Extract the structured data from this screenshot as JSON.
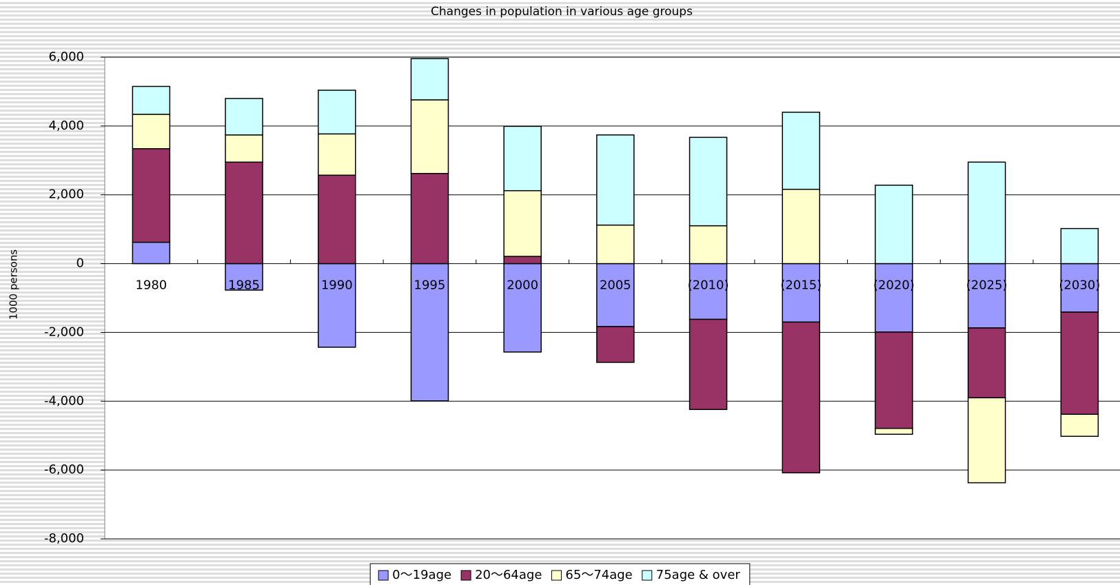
{
  "chart_data": {
    "type": "stacked_bar",
    "title": "Changes in population in various age groups",
    "y_label": "1000 persons",
    "categories": [
      "1980",
      "1985",
      "1990",
      "1995",
      "2000",
      "2005",
      "(2010)",
      "(2015)",
      "(2020)",
      "(2025)",
      "(2030)"
    ],
    "series": [
      {
        "name": "0〜19age",
        "color": "#9999ff",
        "values": [
          620,
          -770,
          -2430,
          -3990,
          -2570,
          -1830,
          -1620,
          -1700,
          -1990,
          -1870,
          -1410
        ]
      },
      {
        "name": "20〜64age",
        "color": "#993366",
        "values": [
          2720,
          2950,
          2570,
          2620,
          210,
          -1040,
          -2620,
          -4380,
          -2800,
          -2030,
          -2970
        ]
      },
      {
        "name": "65〜74age",
        "color": "#ffffcc",
        "values": [
          1000,
          790,
          1200,
          2140,
          1910,
          1120,
          1100,
          2160,
          -170,
          -2470,
          -640
        ]
      },
      {
        "name": "75age & over",
        "color": "#ccffff",
        "values": [
          810,
          1060,
          1270,
          1200,
          1870,
          2620,
          2570,
          2240,
          2280,
          2950,
          1020
        ]
      }
    ],
    "ylim": [
      -8000,
      6000
    ],
    "yticks": [
      {
        "value": -8000,
        "label": "-8,000"
      },
      {
        "value": -6000,
        "label": "-6,000"
      },
      {
        "value": -4000,
        "label": "-4,000"
      },
      {
        "value": -2000,
        "label": "-2,000"
      },
      0,
      {
        "value": 2000,
        "label": "2,000"
      },
      {
        "value": 4000,
        "label": "4,000"
      },
      {
        "value": 6000,
        "label": "6,000"
      }
    ],
    "grid": true,
    "legend": "bottom"
  }
}
